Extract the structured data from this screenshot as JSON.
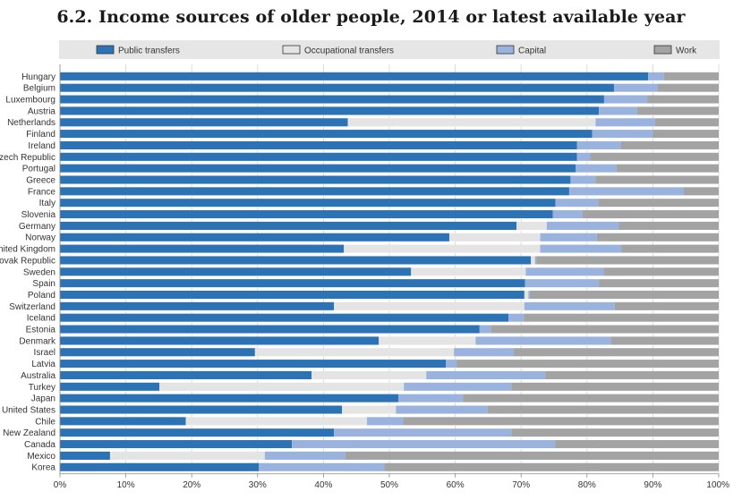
{
  "chart_data": {
    "type": "bar",
    "orientation": "horizontal",
    "stacked": true,
    "percent_stacked": true,
    "title": "6.2.  Income sources of older people, 2014 or latest available year",
    "xlim": [
      0,
      100
    ],
    "x_ticks": [
      "0%",
      "10%",
      "20%",
      "30%",
      "40%",
      "50%",
      "60%",
      "70%",
      "80%",
      "90%",
      "100%"
    ],
    "legend_position": "top",
    "grid": "vertical",
    "categories": [
      "Hungary",
      "Belgium",
      "Luxembourg",
      "Austria",
      "Netherlands",
      "Finland",
      "Ireland",
      "Czech Republic",
      "Portugal",
      "Greece",
      "France",
      "Italy",
      "Slovenia",
      "Germany",
      "Norway",
      "United Kingdom",
      "Slovak Republic",
      "Sweden",
      "Spain",
      "Poland",
      "Switzerland",
      "Iceland",
      "Estonia",
      "Denmark",
      "Israel",
      "Latvia",
      "Australia",
      "Turkey",
      "Japan",
      "United States",
      "Chile",
      "New Zealand",
      "Canada",
      "Mexico",
      "Korea"
    ],
    "series": [
      {
        "name": "Public transfers",
        "color": "#2c73b5",
        "values": [
          89.3,
          84.1,
          82.6,
          81.8,
          43.7,
          80.8,
          78.5,
          78.5,
          78.3,
          77.5,
          77.3,
          75.2,
          74.8,
          69.3,
          59.1,
          43.1,
          71.5,
          53.3,
          70.6,
          70.5,
          41.6,
          68.1,
          63.7,
          48.4,
          29.6,
          58.6,
          38.2,
          15.1,
          51.4,
          42.8,
          19.1,
          41.6,
          35.2,
          7.6,
          30.2
        ]
      },
      {
        "name": "Occupational transfers",
        "color": "#e4e4e4",
        "values": [
          0,
          0,
          0,
          0,
          37.6,
          0,
          0,
          0,
          0,
          0,
          0,
          0,
          0,
          4.6,
          13.8,
          29.8,
          0.6,
          17.4,
          0,
          0.6,
          28.9,
          0,
          0,
          14.7,
          30.2,
          0,
          17.4,
          37.1,
          0,
          8.2,
          27.5,
          0,
          0,
          23.5,
          0
        ]
      },
      {
        "name": "Capital",
        "color": "#9ab3de",
        "values": [
          2.4,
          6.6,
          6.6,
          5.8,
          9.0,
          9.2,
          6.6,
          2.0,
          6.2,
          3.8,
          17.4,
          6.5,
          4.5,
          10.9,
          8.6,
          12.3,
          0.2,
          11.8,
          11.2,
          0.2,
          13.7,
          2.3,
          1.7,
          20.5,
          9.1,
          1.6,
          18.1,
          16.3,
          9.8,
          13.9,
          5.5,
          26.9,
          40.0,
          12.2,
          19.0
        ]
      },
      {
        "name": "Work",
        "color": "#a3a3a3",
        "values": [
          8.3,
          9.3,
          10.8,
          12.4,
          9.7,
          10.0,
          14.9,
          19.5,
          15.5,
          18.7,
          5.3,
          18.3,
          20.7,
          15.2,
          18.5,
          14.8,
          27.7,
          17.5,
          18.2,
          28.7,
          15.8,
          29.6,
          34.6,
          16.4,
          31.1,
          39.8,
          26.3,
          31.5,
          38.8,
          35.1,
          47.9,
          31.5,
          24.8,
          56.7,
          50.8
        ]
      }
    ]
  }
}
